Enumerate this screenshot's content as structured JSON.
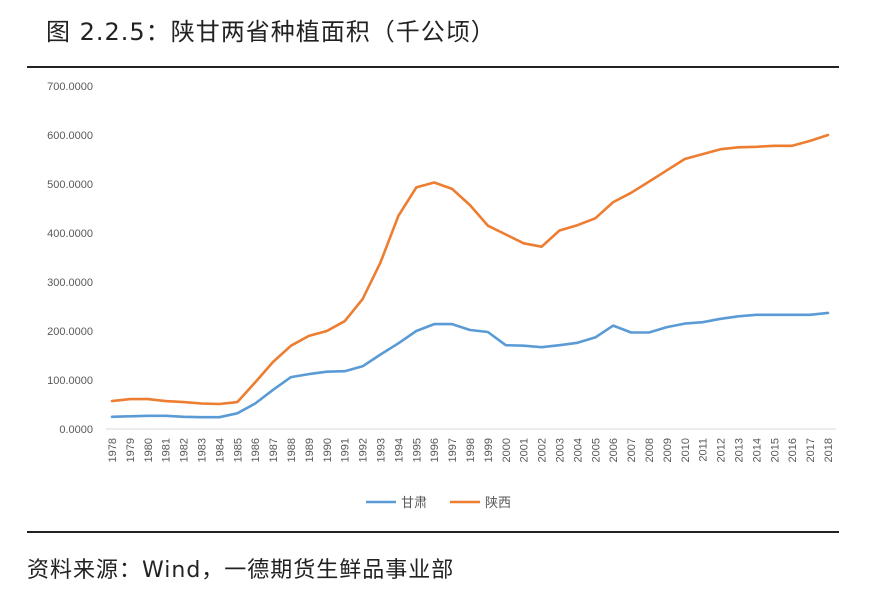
{
  "header": {
    "title": "图 2.2.5：陕甘两省种植面积（千公顷）"
  },
  "footer": {
    "source": "资料来源：Wind，一德期货生鲜品事业部"
  },
  "chart_data": {
    "type": "line",
    "title": "",
    "xlabel": "",
    "ylabel": "",
    "ylim": [
      0,
      700
    ],
    "y_ticks": [
      "0.0000",
      "100.0000",
      "200.0000",
      "300.0000",
      "400.0000",
      "500.0000",
      "600.0000",
      "700.0000"
    ],
    "grid": false,
    "legend": "bottom-center",
    "x": [
      "1978",
      "1979",
      "1980",
      "1981",
      "1982",
      "1983",
      "1984",
      "1985",
      "1986",
      "1987",
      "1988",
      "1989",
      "1990",
      "1991",
      "1992",
      "1993",
      "1994",
      "1995",
      "1996",
      "1997",
      "1998",
      "1999",
      "2000",
      "2001",
      "2002",
      "2003",
      "2004",
      "2005",
      "2006",
      "2007",
      "2008",
      "2009",
      "2010",
      "2011",
      "2012",
      "2013",
      "2014",
      "2015",
      "2016",
      "2017",
      "2018"
    ],
    "series": [
      {
        "name": "甘肃",
        "color": "#5B9BD5",
        "values": [
          25,
          26,
          27,
          27,
          25,
          24,
          24,
          32,
          52,
          80,
          106,
          112,
          117,
          118,
          128,
          152,
          175,
          200,
          214,
          214,
          202,
          198,
          171,
          170,
          167,
          171,
          176,
          187,
          211,
          197,
          197,
          208,
          215,
          218,
          225,
          230,
          233,
          233,
          233,
          233,
          237
        ]
      },
      {
        "name": "陕西",
        "color": "#ED7D31",
        "values": [
          57,
          61,
          61,
          57,
          55,
          52,
          51,
          55,
          95,
          137,
          170,
          190,
          200,
          220,
          265,
          340,
          435,
          493,
          503,
          490,
          457,
          415,
          397,
          379,
          372,
          405,
          416,
          430,
          463,
          482,
          505,
          528,
          551,
          561,
          571,
          575,
          576,
          578,
          578,
          588,
          600
        ]
      }
    ]
  }
}
